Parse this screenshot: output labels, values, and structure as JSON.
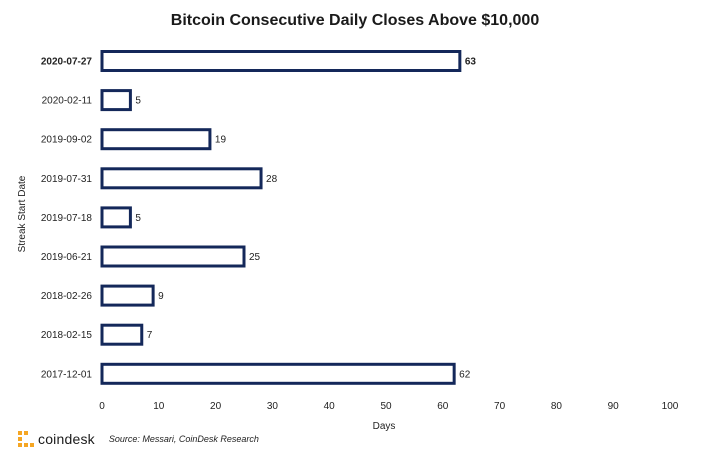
{
  "chart_data": {
    "type": "bar",
    "orientation": "horizontal",
    "title": "Bitcoin Consecutive Daily Closes Above $10,000",
    "xlabel": "Days",
    "ylabel": "Streak Start Date",
    "xlim": [
      0,
      100
    ],
    "xticks": [
      0,
      10,
      20,
      30,
      40,
      50,
      60,
      70,
      80,
      90,
      100
    ],
    "categories": [
      "2020-07-27",
      "2020-02-11",
      "2019-09-02",
      "2019-07-31",
      "2019-07-18",
      "2019-06-21",
      "2018-02-26",
      "2018-02-15",
      "2017-12-01"
    ],
    "values": [
      63,
      5,
      19,
      28,
      5,
      25,
      9,
      7,
      62
    ],
    "highlight_category": "2020-07-27",
    "grid": false,
    "colors": {
      "bar_fill": "#ffffff",
      "bar_stroke": "#14285a",
      "logo_gold": "#f5a623"
    }
  },
  "footer": {
    "logo_text": "coindesk",
    "logo_icon": "coindesk-logo-icon",
    "source": "Source: Messari, CoinDesk Research"
  }
}
